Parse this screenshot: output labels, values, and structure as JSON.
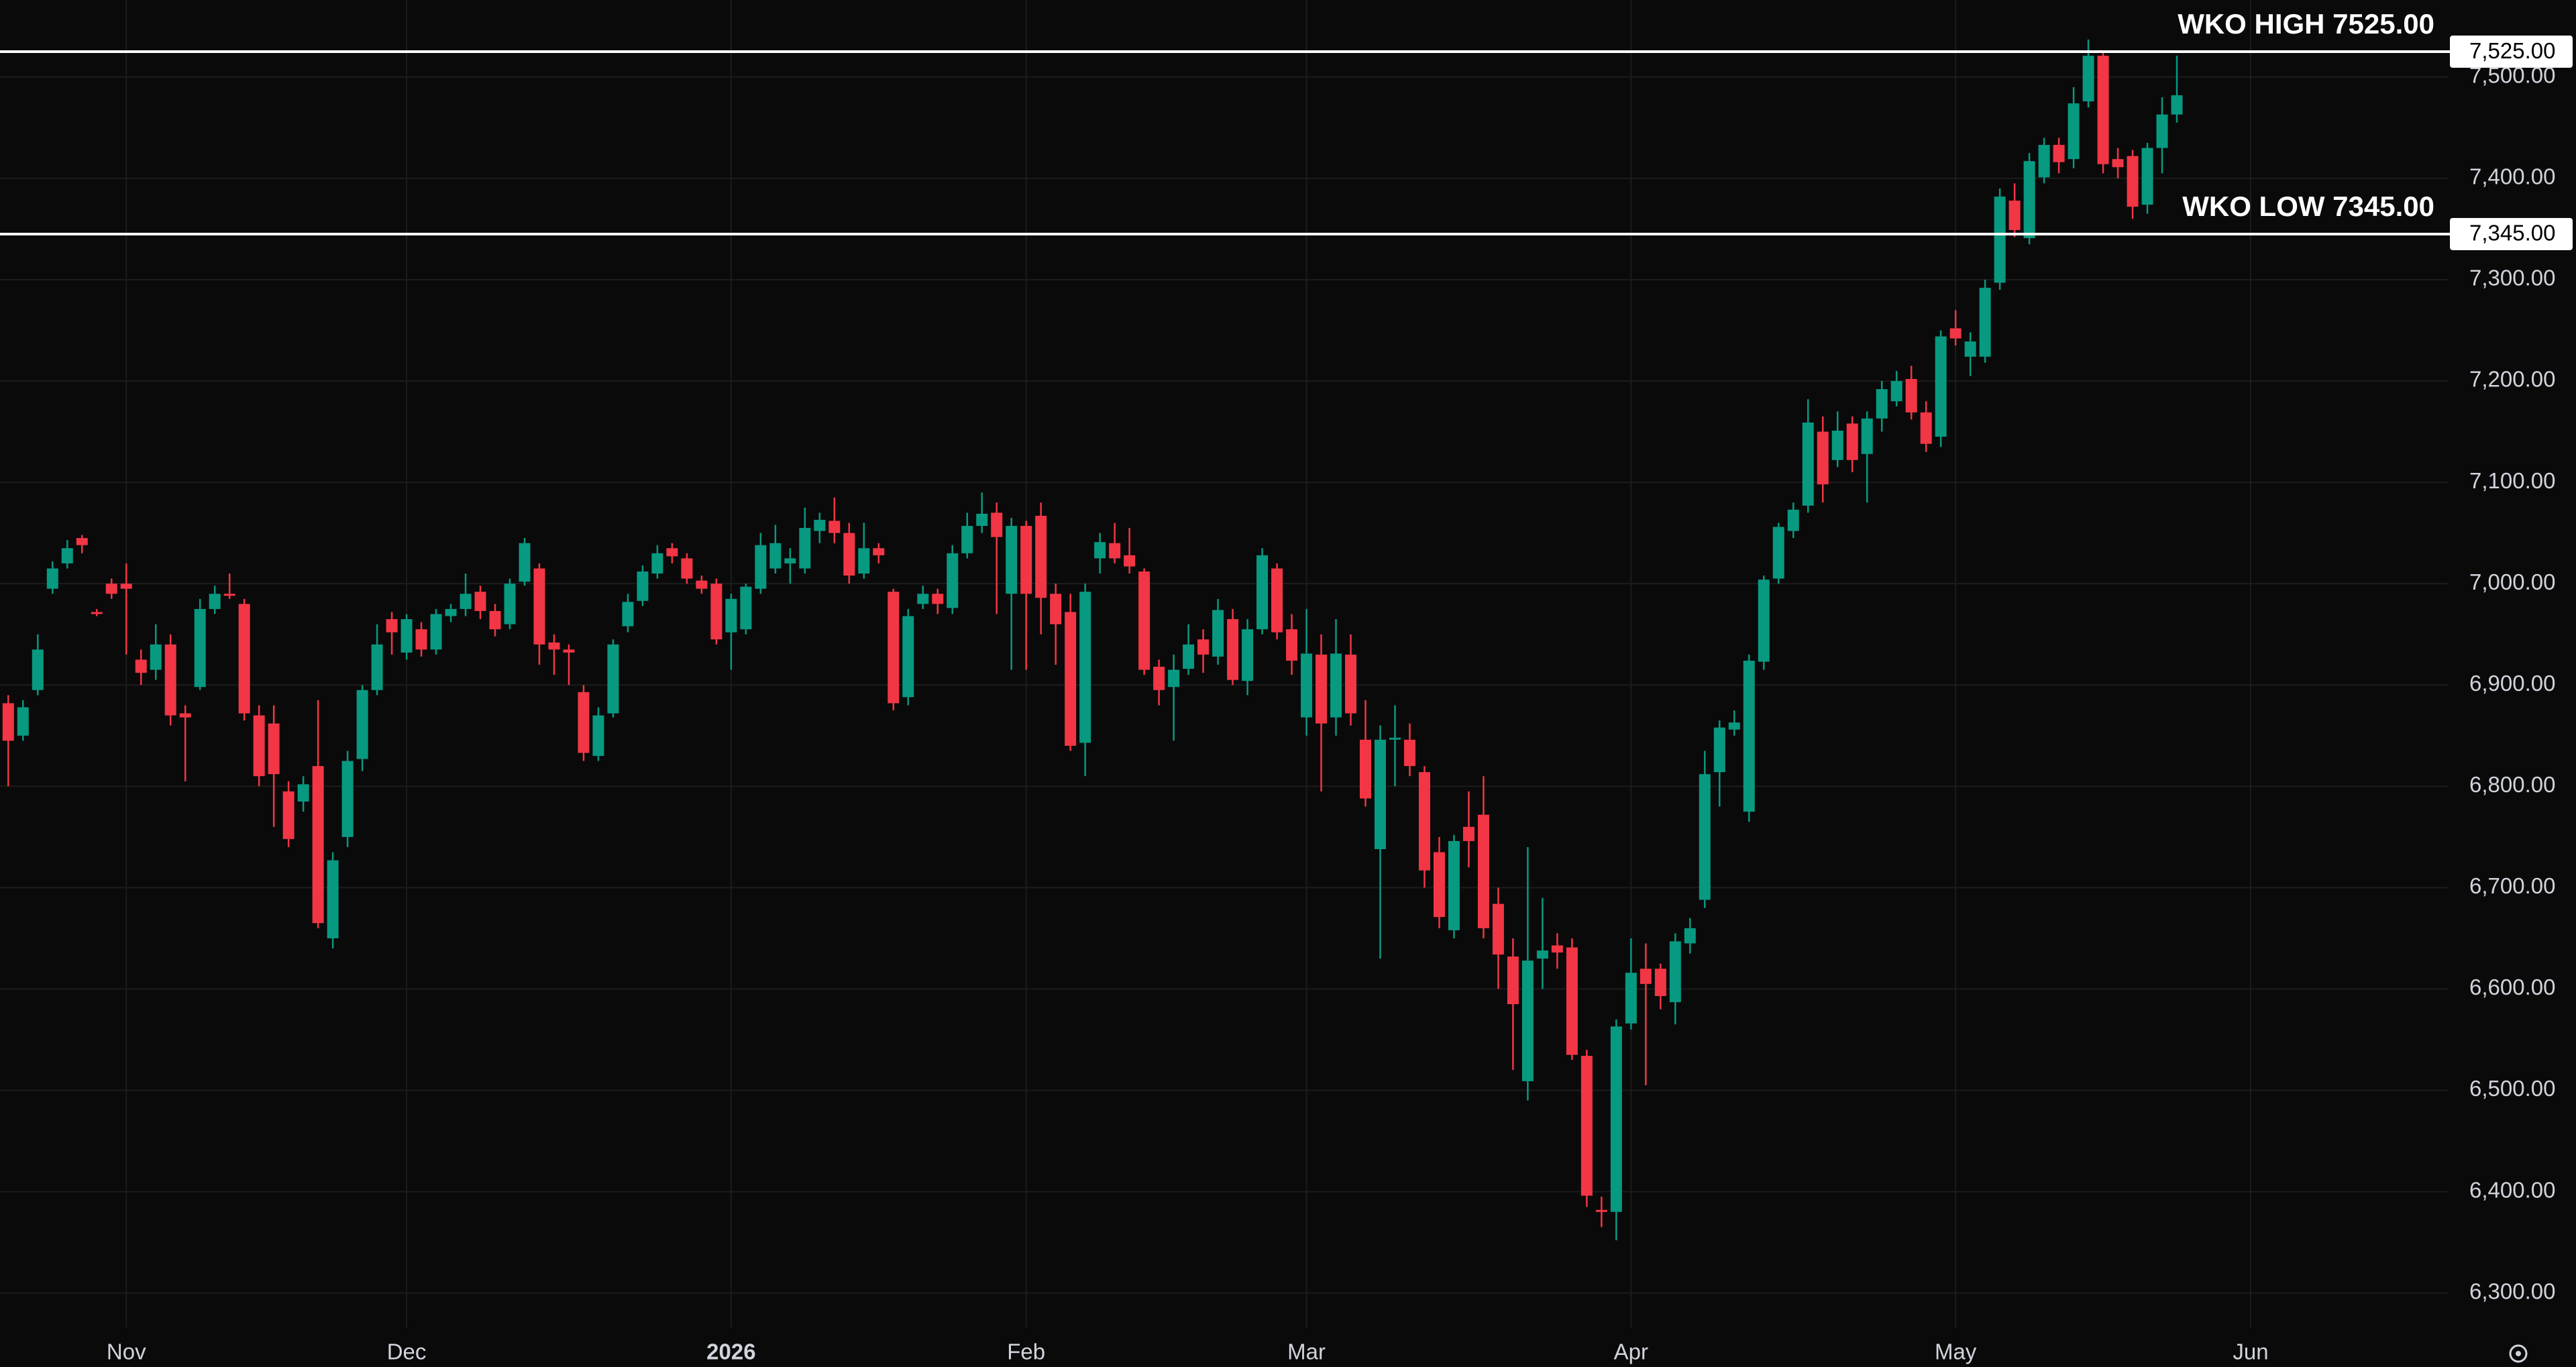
{
  "chart_data": {
    "type": "candlestick",
    "up_color": "#089981",
    "down_color": "#f23645",
    "grid": true,
    "xlim": [
      -0.56,
      165.37
    ],
    "ylim": [
      6266,
      7576
    ],
    "xticks": [
      {
        "value": 8,
        "label": "Nov"
      },
      {
        "value": 27,
        "label": "Dec"
      },
      {
        "value": 49,
        "label": "2026"
      },
      {
        "value": 69,
        "label": "Feb"
      },
      {
        "value": 88,
        "label": "Mar"
      },
      {
        "value": 110,
        "label": "Apr"
      },
      {
        "value": 132,
        "label": "May"
      },
      {
        "value": 152,
        "label": "Jun"
      }
    ],
    "yticks": [
      {
        "value": 6300,
        "label": "6,300.00"
      },
      {
        "value": 6400,
        "label": "6,400.00"
      },
      {
        "value": 6500,
        "label": "6,500.00"
      },
      {
        "value": 6600,
        "label": "6,600.00"
      },
      {
        "value": 6700,
        "label": "6,700.00"
      },
      {
        "value": 6800,
        "label": "6,800.00"
      },
      {
        "value": 6900,
        "label": "6,900.00"
      },
      {
        "value": 7000,
        "label": "7,000.00"
      },
      {
        "value": 7100,
        "label": "7,100.00"
      },
      {
        "value": 7200,
        "label": "7,200.00"
      },
      {
        "value": 7300,
        "label": "7,300.00"
      },
      {
        "value": 7400,
        "label": "7,400.00"
      },
      {
        "value": 7500,
        "label": "7,500.00"
      }
    ],
    "levels": [
      {
        "text": "WKO HIGH 7525.00",
        "value": 7525,
        "label": "7,525.00",
        "color": "#ffffff"
      },
      {
        "text": "WKO LOW 7345.00",
        "value": 7345,
        "label": "7,345.00",
        "color": "#ffffff"
      }
    ],
    "open": [
      6882,
      6850,
      6895,
      6995,
      7020,
      7045,
      6972,
      7000,
      7000,
      6925,
      6915,
      6940,
      6872,
      6898,
      6975,
      6990,
      6980,
      6870,
      6862,
      6795,
      6785,
      6820,
      6650,
      6750,
      6827,
      6895,
      6965,
      6932,
      6955,
      6935,
      6968,
      6975,
      6992,
      6973,
      6960,
      7002,
      7015,
      6942,
      6935,
      6893,
      6830,
      6872,
      6958,
      6983,
      7010,
      7035,
      7025,
      7003,
      7000,
      6952,
      6955,
      6995,
      7015,
      7020,
      7015,
      7052,
      7062,
      7050,
      7010,
      7035,
      6992,
      6888,
      6980,
      6990,
      6976,
      7030,
      7057,
      7070,
      6990,
      7057,
      7067,
      6990,
      6972,
      6843,
      7025,
      7040,
      7028,
      7012,
      6918,
      6898,
      6916,
      6945,
      6928,
      6965,
      6904,
      6955,
      7015,
      6955,
      6868,
      6930,
      6868,
      6930,
      6846,
      6738,
      6846,
      6846,
      6814,
      6735,
      6658,
      6760,
      6772,
      6684,
      6632,
      6509,
      6630,
      6643,
      6641,
      6534,
      6382,
      6380,
      6566,
      6620,
      6620,
      6587,
      6645,
      6688,
      6814,
      6856,
      6775,
      6923,
      7005,
      7052,
      7077,
      7150,
      7122,
      7158,
      7128,
      7163,
      7180,
      7202,
      7169,
      7145,
      7252,
      7224,
      7224,
      7297,
      7378,
      7341,
      7401,
      7433,
      7419,
      7476,
      7521,
      7419,
      7422,
      7374,
      7430,
      7463
    ],
    "high": [
      6890,
      6885,
      6950,
      7022,
      7043,
      7048,
      6975,
      7005,
      7020,
      6935,
      6960,
      6950,
      6880,
      6985,
      6998,
      7010,
      6985,
      6880,
      6880,
      6805,
      6810,
      6885,
      6735,
      6835,
      6900,
      6960,
      6972,
      6970,
      6962,
      6975,
      6980,
      7010,
      6998,
      6980,
      7005,
      7045,
      7020,
      6950,
      6940,
      6900,
      6878,
      6945,
      6990,
      7018,
      7038,
      7040,
      7030,
      7008,
      7005,
      6990,
      7000,
      7050,
      7058,
      7035,
      7075,
      7070,
      7085,
      7060,
      7060,
      7040,
      6995,
      6975,
      6998,
      6995,
      7038,
      7070,
      7090,
      7080,
      7065,
      7062,
      7080,
      7000,
      6990,
      7000,
      7050,
      7060,
      7055,
      7015,
      6925,
      6930,
      6960,
      6955,
      6985,
      6975,
      6965,
      7035,
      7020,
      6970,
      6975,
      6950,
      6965,
      6950,
      6885,
      6860,
      6880,
      6862,
      6820,
      6750,
      6752,
      6795,
      6810,
      6700,
      6650,
      6740,
      6690,
      6655,
      6650,
      6540,
      6395,
      6570,
      6650,
      6645,
      6625,
      6655,
      6670,
      6835,
      6865,
      6875,
      6930,
      7008,
      7060,
      7080,
      7182,
      7165,
      7170,
      7165,
      7170,
      7200,
      7210,
      7215,
      7180,
      7250,
      7270,
      7248,
      7300,
      7390,
      7395,
      7425,
      7440,
      7440,
      7490,
      7537,
      7525,
      7430,
      7428,
      7435,
      7480,
      7521
    ],
    "low": [
      6800,
      6845,
      6890,
      6990,
      7015,
      7030,
      6968,
      6985,
      6930,
      6900,
      6905,
      6860,
      6805,
      6895,
      6970,
      6985,
      6865,
      6800,
      6760,
      6740,
      6775,
      6660,
      6640,
      6740,
      6815,
      6890,
      6930,
      6925,
      6928,
      6930,
      6962,
      6968,
      6965,
      6948,
      6955,
      6998,
      6920,
      6910,
      6900,
      6825,
      6825,
      6868,
      6952,
      6978,
      7005,
      7020,
      7000,
      6990,
      6940,
      6915,
      6950,
      6990,
      7010,
      7000,
      7010,
      7040,
      7040,
      7000,
      7005,
      7020,
      6875,
      6880,
      6975,
      6970,
      6970,
      7025,
      7050,
      6970,
      6915,
      6915,
      6950,
      6920,
      6835,
      6810,
      7010,
      7020,
      7010,
      6910,
      6880,
      6845,
      6910,
      6912,
      6920,
      6900,
      6890,
      6950,
      6945,
      6910,
      6850,
      6795,
      6850,
      6860,
      6780,
      6630,
      6800,
      6810,
      6700,
      6660,
      6650,
      6720,
      6650,
      6600,
      6520,
      6490,
      6600,
      6620,
      6530,
      6385,
      6365,
      6352,
      6560,
      6505,
      6580,
      6565,
      6635,
      6680,
      6780,
      6850,
      6765,
      6915,
      7000,
      7045,
      7070,
      7080,
      7115,
      7110,
      7080,
      7150,
      7175,
      7162,
      7130,
      7135,
      7235,
      7205,
      7218,
      7290,
      7342,
      7335,
      7395,
      7405,
      7410,
      7470,
      7405,
      7400,
      7360,
      7365,
      7405,
      7455
    ],
    "close": [
      6845,
      6878,
      6935,
      7015,
      7035,
      7038,
      6970,
      6990,
      6995,
      6912,
      6940,
      6870,
      6868,
      6975,
      6990,
      6988,
      6872,
      6810,
      6812,
      6748,
      6802,
      6665,
      6727,
      6825,
      6895,
      6940,
      6952,
      6965,
      6935,
      6970,
      6975,
      6990,
      6973,
      6955,
      7000,
      7040,
      6940,
      6935,
      6932,
      6833,
      6870,
      6940,
      6982,
      7012,
      7030,
      7027,
      7005,
      6995,
      6945,
      6985,
      6997,
      7038,
      7040,
      7025,
      7055,
      7063,
      7050,
      7008,
      7035,
      7028,
      6882,
      6968,
      6990,
      6980,
      7030,
      7057,
      7069,
      7046,
      7057,
      6990,
      6986,
      6960,
      6840,
      6992,
      7041,
      7025,
      7017,
      6915,
      6895,
      6915,
      6940,
      6930,
      6974,
      6905,
      6955,
      7028,
      6952,
      6924,
      6931,
      6862,
      6931,
      6872,
      6788,
      6846,
      6848,
      6820,
      6717,
      6671,
      6746,
      6746,
      6660,
      6634,
      6585,
      6628,
      6638,
      6636,
      6535,
      6396,
      6380,
      6563,
      6616,
      6605,
      6593,
      6647,
      6660,
      6812,
      6858,
      6863,
      6924,
      7004,
      7056,
      7073,
      7159,
      7098,
      7151,
      7122,
      7163,
      7192,
      7200,
      7169,
      7138,
      7244,
      7242,
      7239,
      7292,
      7382,
      7349,
      7417,
      7433,
      7416,
      7474,
      7521,
      7414,
      7411,
      7372,
      7430,
      7463,
      7482
    ]
  }
}
